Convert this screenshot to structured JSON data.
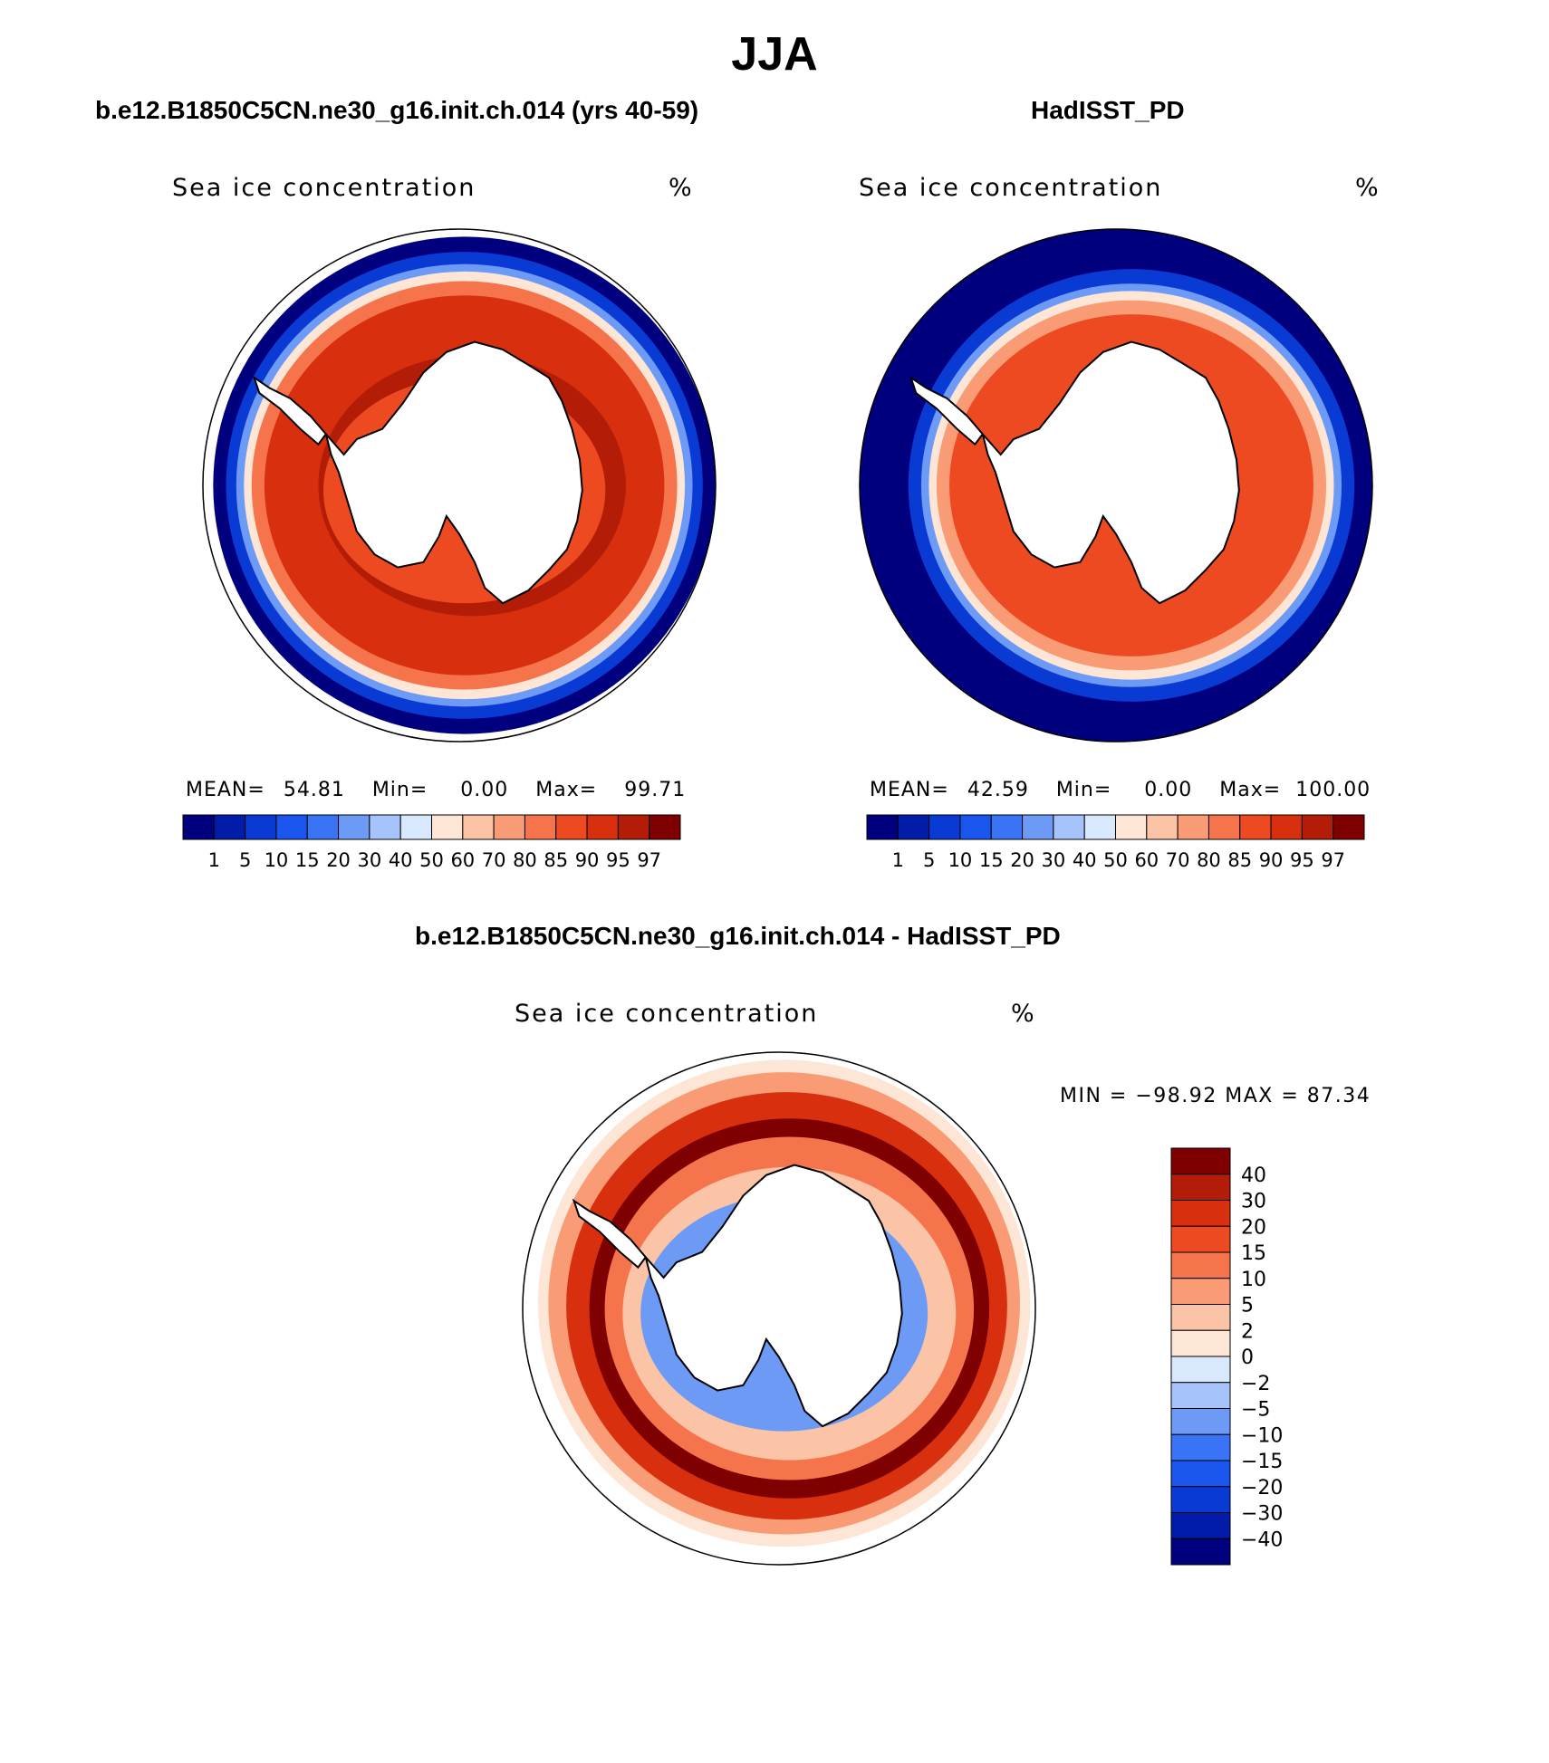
{
  "page": {
    "title": "JJA"
  },
  "panels": [
    {
      "title": "b.e12.B1850C5CN.ne30_g16.init.ch.014 (yrs 40-59)",
      "subtitle": "Sea ice concentration",
      "units": "%",
      "stats": {
        "mean_label": "MEAN=",
        "mean": "54.81",
        "min_label": "Min=",
        "min": "0.00",
        "max_label": "Max=",
        "max": "99.71"
      },
      "ice_edge_lat": -55.5,
      "colorbar": {
        "labels": [
          "1",
          "5",
          "10",
          "15",
          "20",
          "30",
          "40",
          "50",
          "60",
          "70",
          "80",
          "85",
          "90",
          "95",
          "97"
        ],
        "colors": [
          "#00007f",
          "#001ca8",
          "#0a3ad4",
          "#1a55ee",
          "#3a74f6",
          "#6d9af5",
          "#a6c4fb",
          "#d8e8fd",
          "#fde6d6",
          "#fcc4a6",
          "#f99c76",
          "#f6744b",
          "#ee4a22",
          "#d8300f",
          "#b31d07",
          "#7f0000"
        ]
      }
    },
    {
      "title": "HadISST_PD",
      "subtitle": "Sea ice concentration",
      "units": "%",
      "stats": {
        "mean_label": "MEAN=",
        "mean": "42.59",
        "min_label": "Min=",
        "min": "0.00",
        "max_label": "Max=",
        "max": "100.00"
      },
      "ice_edge_lat": -58,
      "colorbar": {
        "labels": [
          "1",
          "5",
          "10",
          "15",
          "20",
          "30",
          "40",
          "50",
          "60",
          "70",
          "80",
          "85",
          "90",
          "95",
          "97"
        ],
        "colors": [
          "#00007f",
          "#001ca8",
          "#0a3ad4",
          "#1a55ee",
          "#3a74f6",
          "#6d9af5",
          "#a6c4fb",
          "#d8e8fd",
          "#fde6d6",
          "#fcc4a6",
          "#f99c76",
          "#f6744b",
          "#ee4a22",
          "#d8300f",
          "#b31d07",
          "#7f0000"
        ]
      }
    }
  ],
  "difference": {
    "title": "b.e12.B1850C5CN.ne30_g16.init.ch.014 - HadISST_PD",
    "subtitle": "Sea ice concentration",
    "units": "%",
    "minmax": "MIN = −98.92 MAX =   87.34",
    "colorbar": {
      "labels": [
        "40",
        "30",
        "20",
        "15",
        "10",
        "5",
        "2",
        "0",
        "−2",
        "−5",
        "−10",
        "−15",
        "−20",
        "−30",
        "−40"
      ],
      "colors": [
        "#7f0000",
        "#b31d07",
        "#d8300f",
        "#ee4a22",
        "#f6744b",
        "#f99c76",
        "#fcc4a6",
        "#fde6d6",
        "#d8e8fd",
        "#a6c4fb",
        "#6d9af5",
        "#3a74f6",
        "#1a55ee",
        "#0a3ad4",
        "#001ca8",
        "#00007f"
      ]
    }
  }
}
